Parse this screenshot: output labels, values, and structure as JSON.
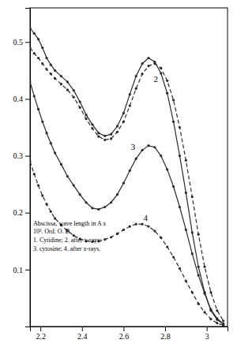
{
  "chart_data": {
    "type": "line",
    "x": [
      2.15,
      2.17,
      2.19,
      2.21,
      2.23,
      2.25,
      2.27,
      2.3,
      2.33,
      2.36,
      2.39,
      2.42,
      2.45,
      2.48,
      2.51,
      2.54,
      2.57,
      2.6,
      2.63,
      2.66,
      2.69,
      2.72,
      2.75,
      2.78,
      2.81,
      2.84,
      2.87,
      2.9,
      2.93,
      2.96,
      2.99,
      3.02,
      3.05,
      3.08
    ],
    "series": [
      {
        "color": "#2a2a2a",
        "line_style": "solid",
        "marker": "circle",
        "values": [
          0.525,
          0.515,
          0.505,
          0.49,
          0.472,
          0.46,
          0.45,
          0.44,
          0.43,
          0.415,
          0.395,
          0.372,
          0.355,
          0.34,
          0.335,
          0.338,
          0.352,
          0.375,
          0.408,
          0.44,
          0.462,
          0.472,
          0.465,
          0.445,
          0.41,
          0.36,
          0.3,
          0.235,
          0.165,
          0.105,
          0.06,
          0.028,
          0.012,
          0.004
        ]
      },
      {
        "color": "#2a2a2a",
        "line_style": "dashed",
        "marker": "circle",
        "values": [
          0.49,
          0.48,
          0.472,
          0.462,
          0.452,
          0.444,
          0.436,
          0.426,
          0.416,
          0.403,
          0.385,
          0.365,
          0.348,
          0.334,
          0.328,
          0.33,
          0.342,
          0.36,
          0.388,
          0.418,
          0.444,
          0.458,
          0.462,
          0.454,
          0.432,
          0.398,
          0.35,
          0.292,
          0.228,
          0.162,
          0.105,
          0.06,
          0.028,
          0.01
        ]
      },
      {
        "color": "#2a2a2a",
        "line_style": "solid",
        "marker": "circle",
        "values": [
          0.43,
          0.405,
          0.382,
          0.36,
          0.34,
          0.322,
          0.305,
          0.285,
          0.264,
          0.248,
          0.232,
          0.218,
          0.208,
          0.206,
          0.21,
          0.218,
          0.232,
          0.252,
          0.274,
          0.295,
          0.31,
          0.318,
          0.315,
          0.3,
          0.276,
          0.246,
          0.21,
          0.17,
          0.128,
          0.09,
          0.058,
          0.03,
          0.014,
          0.005
        ]
      },
      {
        "color": "#2a2a2a",
        "line_style": "dashed",
        "marker": "circle",
        "values": [
          0.29,
          0.268,
          0.248,
          0.23,
          0.215,
          0.202,
          0.19,
          0.178,
          0.168,
          0.16,
          0.154,
          0.15,
          0.149,
          0.15,
          0.153,
          0.157,
          0.163,
          0.17,
          0.176,
          0.18,
          0.18,
          0.176,
          0.168,
          0.156,
          0.14,
          0.122,
          0.102,
          0.08,
          0.06,
          0.04,
          0.025,
          0.013,
          0.006,
          0.002
        ]
      }
    ],
    "annotations": [
      {
        "text": "2",
        "x": 2.745,
        "y": 0.43
      },
      {
        "text": "3",
        "x": 2.635,
        "y": 0.31
      },
      {
        "text": "4",
        "x": 2.695,
        "y": 0.186
      },
      {
        "text": "Abscissa, wave length in A x\n10³.  Ord. O. D.\n1. Cytidine; 2. after x-rays:\n3. cytosine; 4. after x-rays.",
        "x": 2.165,
        "y": 0.188
      }
    ],
    "xlim": [
      2.15,
      3.1
    ],
    "ylim": [
      0.0,
      0.56
    ],
    "xticks": [
      2.2,
      2.4,
      2.6,
      2.8,
      3
    ],
    "yticks": [
      0.1,
      0.2,
      0.3,
      0.4,
      0.5
    ],
    "grid": false
  }
}
